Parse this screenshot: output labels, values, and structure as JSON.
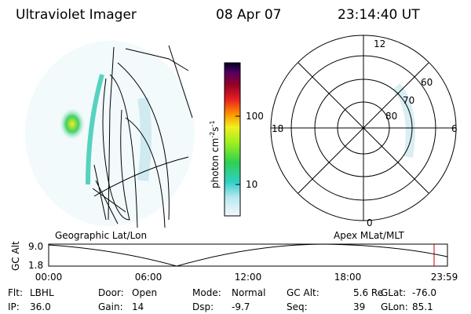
{
  "header": {
    "instrument": "Ultraviolet Imager",
    "date": "08 Apr 07",
    "time": "23:14:40 UT"
  },
  "colorbar": {
    "label_base": "photon cm",
    "label_exp1": "-2",
    "label_unit2": "s",
    "label_exp2": "-1",
    "tick_labels": [
      "100",
      "10"
    ]
  },
  "polar": {
    "mlt_labels": [
      "12",
      "18",
      "6",
      "0"
    ],
    "lat_labels": [
      "60",
      "70",
      "80"
    ]
  },
  "altitude_plot": {
    "left_title": "Geographic Lat/Lon",
    "right_title": "Apex MLat/MLT",
    "y_label": "GC Alt",
    "y_labels": [
      "9.0",
      "1.8"
    ],
    "x_labels": [
      "00:00",
      "06:00",
      "12:00",
      "18:00",
      "23:59"
    ]
  },
  "footer": {
    "rows": [
      [
        [
          "Flt:",
          "LBHL"
        ],
        [
          "Door:",
          "Open"
        ],
        [
          "Mode:",
          "Normal"
        ],
        [
          "GC Alt:",
          "5.6 Re"
        ],
        [
          "GLat:",
          "-76.0"
        ]
      ],
      [
        [
          "IP:",
          "36.0"
        ],
        [
          "Gain:",
          "14"
        ],
        [
          "Dsp:",
          "-9.7"
        ],
        [
          "Seq:",
          "39"
        ],
        [
          "GLon:",
          "85.1"
        ]
      ]
    ]
  }
}
